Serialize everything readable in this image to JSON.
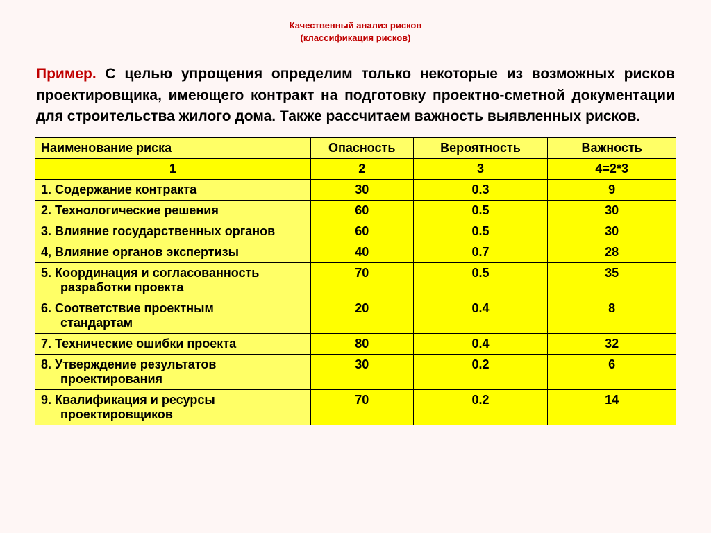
{
  "header": {
    "line1": "Качественный анализ рисков",
    "line2": "(классификация рисков)"
  },
  "description": {
    "prefix": "Пример.",
    "body": " С целью упрощения определим только некоторые из возможных рисков проектировщика, имеющего контракт на подготовку проектно-сметной документации для строительства жилого дома. Также рассчитаем важность выявленных рисков."
  },
  "table": {
    "columns": {
      "name": "Наименование риска",
      "danger": "Опасность",
      "probability": "Вероятность",
      "importance": "Важность"
    },
    "numberRow": {
      "c1": "1",
      "c2": "2",
      "c3": "3",
      "c4": "4=2*3"
    },
    "rows": [
      {
        "name": "1. Содержание контракта",
        "indent": "",
        "hasIndent": false,
        "danger": "30",
        "prob": "0.3",
        "imp": "9"
      },
      {
        "name": "2. Технологические решения",
        "indent": "",
        "hasIndent": false,
        "danger": "60",
        "prob": "0.5",
        "imp": "30"
      },
      {
        "name": "3. Влияние государственных органов",
        "indent": "",
        "hasIndent": false,
        "danger": "60",
        "prob": "0.5",
        "imp": "30"
      },
      {
        "name": "4, Влияние органов экспертизы",
        "indent": "",
        "hasIndent": false,
        "danger": "40",
        "prob": "0.7",
        "imp": "28"
      },
      {
        "name": "5. Координация и согласованность",
        "indent": "разработки проекта",
        "hasIndent": true,
        "danger": "70",
        "prob": "0.5",
        "imp": "35"
      },
      {
        "name": "6. Соответствие проектным",
        "indent": "стандартам",
        "hasIndent": true,
        "danger": "20",
        "prob": "0.4",
        "imp": "8"
      },
      {
        "name": "7. Технические ошибки проекта",
        "indent": "",
        "hasIndent": false,
        "danger": "80",
        "prob": "0.4",
        "imp": "32"
      },
      {
        "name": "8. Утверждение результатов",
        "indent": "проектирования",
        "hasIndent": true,
        "danger": "30",
        "prob": "0.2",
        "imp": "6"
      },
      {
        "name": "9. Квалификация и ресурсы",
        "indent": "проектировщиков",
        "hasIndent": true,
        "danger": "70",
        "prob": "0.2",
        "imp": "14"
      }
    ]
  },
  "colors": {
    "background": "#fef6f5",
    "headerText": "#c00000",
    "tableYellowLight": "#ffff66",
    "tableYellowBright": "#ffff00",
    "border": "#000000"
  }
}
